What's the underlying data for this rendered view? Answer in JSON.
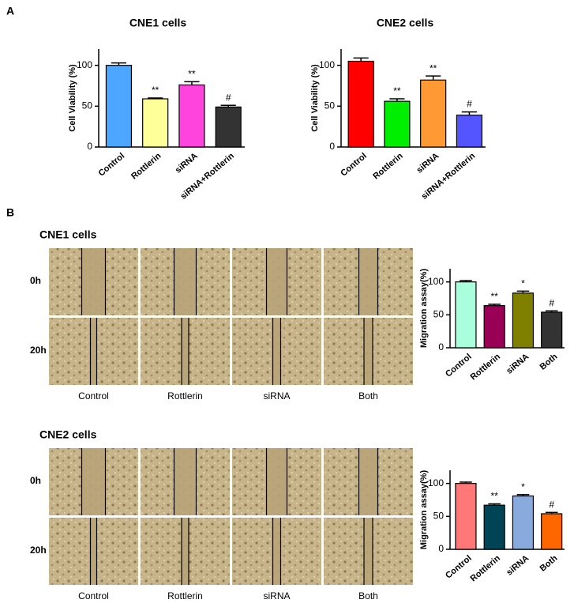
{
  "chart_data": [
    {
      "type": "bar",
      "title": "CNE1 cells",
      "y_label": "Cell Viability (%)",
      "categories": [
        "Control",
        "Rottlerin",
        "siRNA",
        "siRNA+Rottlerin"
      ],
      "values": [
        100,
        59,
        76,
        49
      ],
      "errors": [
        3,
        1,
        4,
        2
      ],
      "colors": [
        "#4da6ff",
        "#ffff99",
        "#ff44dd",
        "#333333"
      ],
      "annotations": [
        null,
        "**",
        "**",
        "#"
      ],
      "ylim": [
        0,
        120
      ],
      "yticks": [
        0,
        50,
        100
      ]
    },
    {
      "type": "bar",
      "title": "CNE2 cells",
      "y_label": "Cell Viability (%)",
      "categories": [
        "Control",
        "Rottlerin",
        "siRNA",
        "siRNA+Rottlerin"
      ],
      "values": [
        105,
        56,
        82,
        39
      ],
      "errors": [
        4,
        3,
        5,
        4
      ],
      "colors": [
        "#ff0000",
        "#00ee00",
        "#ff9933",
        "#5555ff"
      ],
      "annotations": [
        null,
        "**",
        "**",
        "#"
      ],
      "ylim": [
        0,
        120
      ],
      "yticks": [
        0,
        50,
        100
      ]
    },
    {
      "type": "bar",
      "y_label": "Migration assay(%)",
      "categories": [
        "Control",
        "Rottlerin",
        "siRNA",
        "Both"
      ],
      "values": [
        100,
        64,
        83,
        54
      ],
      "errors": [
        2,
        2,
        3,
        2
      ],
      "colors": [
        "#aaffdd",
        "#990055",
        "#808000",
        "#333333"
      ],
      "annotations": [
        null,
        "**",
        "*",
        "#"
      ],
      "ylim": [
        0,
        120
      ],
      "yticks": [
        0,
        50,
        100
      ]
    },
    {
      "type": "bar",
      "y_label": "Migration assay(%)",
      "categories": [
        "Control",
        "Rottlerin",
        "siRNA",
        "Both"
      ],
      "values": [
        100,
        67,
        81,
        54
      ],
      "errors": [
        2,
        2,
        2,
        2
      ],
      "colors": [
        "#ff7777",
        "#004455",
        "#88aadd",
        "#ff6600"
      ],
      "annotations": [
        null,
        "**",
        "*",
        "#"
      ],
      "ylim": [
        0,
        120
      ],
      "yticks": [
        0,
        50,
        100
      ]
    }
  ],
  "figure": {
    "panel_a": "A",
    "panel_b": "B",
    "wound": [
      {
        "title": "CNE1 cells",
        "rows": [
          "0h",
          "20h"
        ],
        "columns": [
          "Control",
          "Rottlerin",
          "siRNA",
          "Both"
        ]
      },
      {
        "title": "CNE2 cells",
        "rows": [
          "0h",
          "20h"
        ],
        "columns": [
          "Control",
          "Rottlerin",
          "siRNA",
          "Both"
        ]
      }
    ]
  }
}
